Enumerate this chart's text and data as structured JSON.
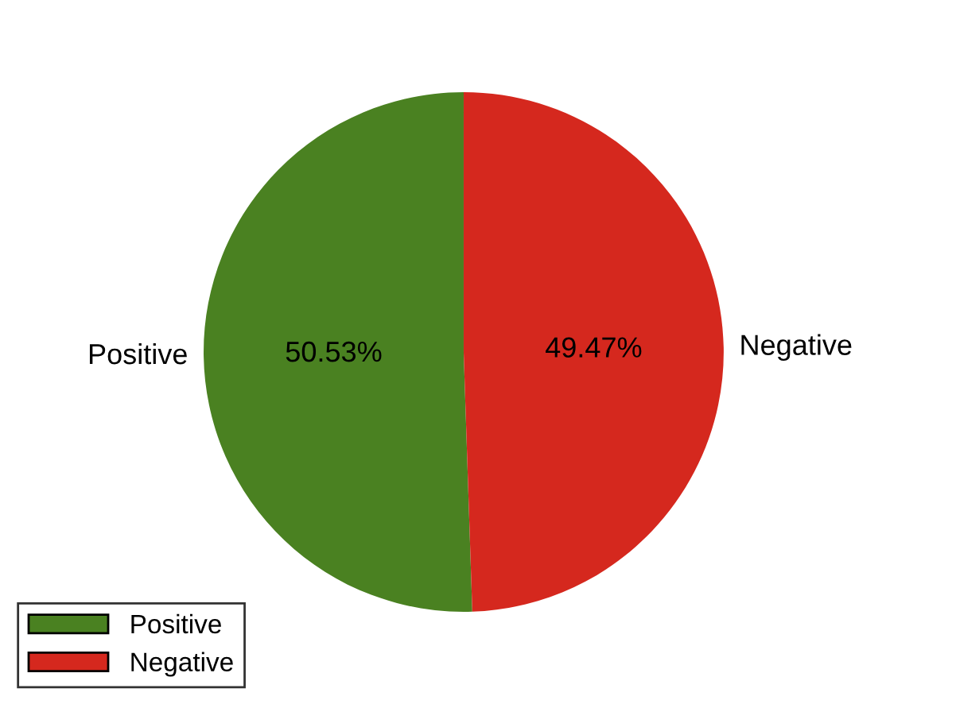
{
  "chart_data": {
    "type": "pie",
    "categories": [
      "Positive",
      "Negative"
    ],
    "values": [
      50.53,
      49.47
    ],
    "colors": [
      "#4a8121",
      "#d5281e"
    ],
    "value_labels": [
      "50.53%",
      "49.47%"
    ],
    "legend": "bottom left"
  }
}
